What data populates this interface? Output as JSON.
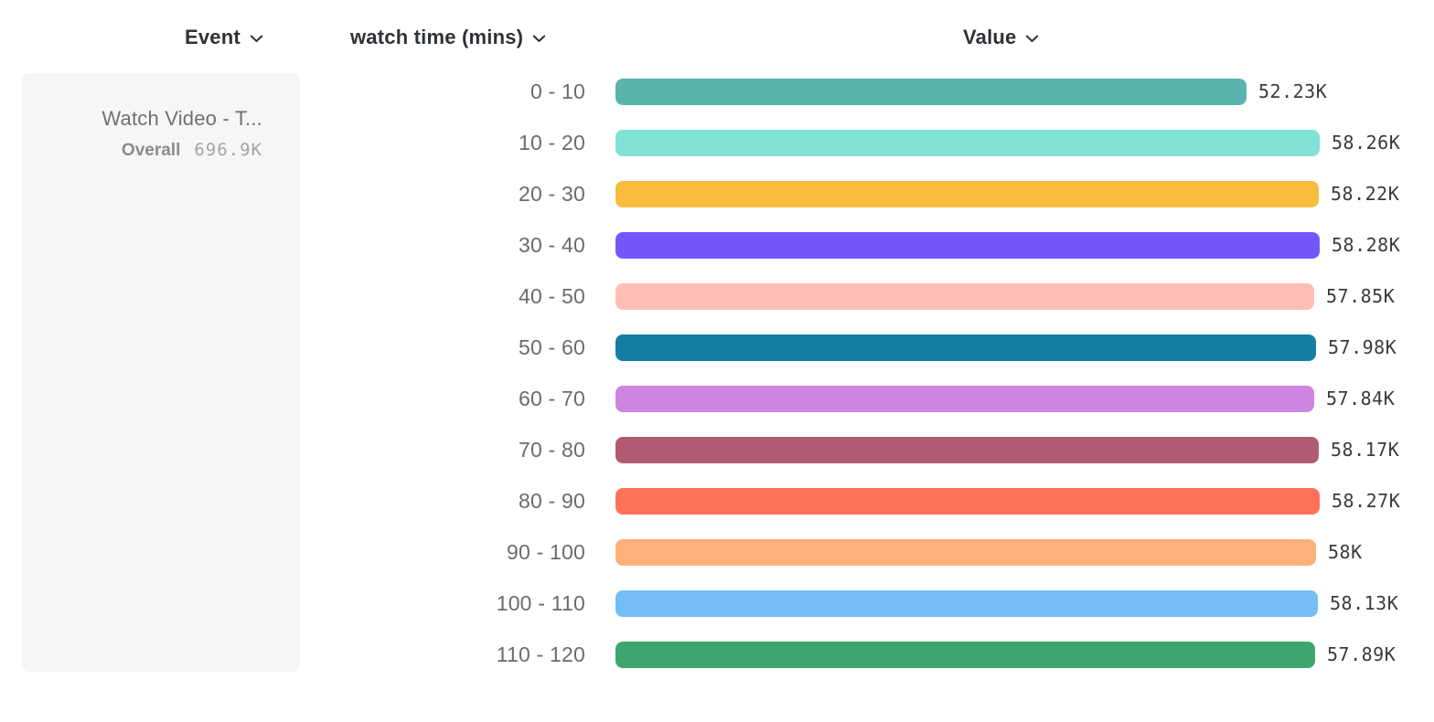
{
  "columns": {
    "event": {
      "label": "Event"
    },
    "breakdown": {
      "label": "watch time (mins)"
    },
    "value": {
      "label": "Value"
    }
  },
  "event_card": {
    "name": "Watch Video - T...",
    "overall_label": "Overall",
    "overall_value": "696.9K"
  },
  "chart_data": {
    "type": "bar",
    "orientation": "horizontal",
    "title": "",
    "xlabel": "Value",
    "ylabel": "watch time (mins)",
    "grid": false,
    "legend": false,
    "unit": "K",
    "categories": [
      "0 - 10",
      "10 - 20",
      "20 - 30",
      "30 - 40",
      "40 - 50",
      "50 - 60",
      "60 - 70",
      "70 - 80",
      "80 - 90",
      "90 - 100",
      "100 - 110",
      "110 - 120"
    ],
    "values": [
      52.23,
      58.26,
      58.22,
      58.28,
      57.85,
      57.98,
      57.84,
      58.17,
      58.27,
      58.0,
      58.13,
      57.89
    ],
    "value_labels": [
      "52.23K",
      "58.26K",
      "58.22K",
      "58.28K",
      "57.85K",
      "57.98K",
      "57.84K",
      "58.17K",
      "58.27K",
      "58K",
      "58.13K",
      "57.89K"
    ],
    "bar_colors": [
      "#59b4ad",
      "#80e1d5",
      "#f8bc3e",
      "#7456fb",
      "#ffbdb3",
      "#137da4",
      "#cd85e0",
      "#b15b72",
      "#ff7257",
      "#fdb078",
      "#74bdf5",
      "#3da56e"
    ]
  }
}
